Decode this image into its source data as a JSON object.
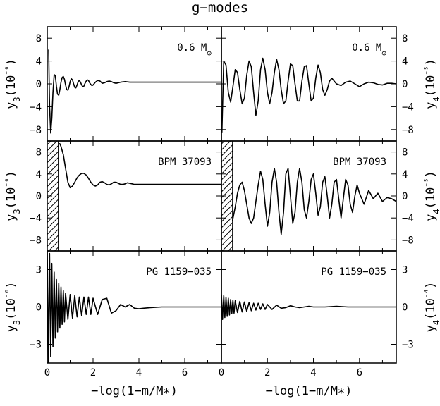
{
  "title": "g−modes",
  "colors": {
    "line": "#000000",
    "background": "#ffffff"
  },
  "chart_data": [
    {
      "type": "line",
      "panel": "top-left",
      "label": "0.6 M⊙",
      "xlabel": "−log(1−m/M∗)",
      "ylabel": "y3(10⁻⁶)",
      "xlim": [
        0,
        7.6
      ],
      "ylim": [
        -10,
        10
      ],
      "xticks": [
        0,
        2,
        4,
        6
      ],
      "yticks": [
        -8,
        -4,
        0,
        4,
        8
      ],
      "xtick_labels": [],
      "ytick_labels": [
        "8",
        "4",
        "0",
        "−4",
        "−8"
      ],
      "hatched_region": null,
      "series": [
        {
          "x": [
            0.06,
            0.1,
            0.15,
            0.2,
            0.25,
            0.3,
            0.35,
            0.4,
            0.45,
            0.5,
            0.55,
            0.6,
            0.65,
            0.7,
            0.75,
            0.8,
            0.85,
            0.9,
            0.95,
            1.0,
            1.05,
            1.1,
            1.15,
            1.2,
            1.25,
            1.3,
            1.35,
            1.4,
            1.45,
            1.5,
            1.55,
            1.6,
            1.65,
            1.7,
            1.75,
            1.8,
            1.85,
            1.9,
            1.95,
            2.0,
            2.1,
            2.2,
            2.3,
            2.4,
            2.5,
            2.6,
            2.7,
            2.8,
            2.9,
            3.0,
            3.2,
            3.4,
            3.6,
            3.8,
            4.0,
            4.4,
            5.0,
            6.0,
            7.6
          ],
          "y": [
            6.0,
            -4.0,
            -8.6,
            -6.0,
            -1.5,
            1.6,
            1.5,
            -0.4,
            -1.8,
            -2.0,
            -1.0,
            0.3,
            1.1,
            1.3,
            0.8,
            -0.2,
            -1.0,
            -1.1,
            -0.5,
            0.4,
            0.9,
            0.7,
            0.0,
            -0.6,
            -0.7,
            -0.2,
            0.4,
            0.6,
            0.3,
            -0.2,
            -0.5,
            -0.4,
            0.1,
            0.5,
            0.7,
            0.6,
            0.2,
            -0.1,
            -0.3,
            -0.2,
            0.3,
            0.6,
            0.5,
            0.1,
            0.2,
            0.4,
            0.5,
            0.4,
            0.2,
            0.1,
            0.3,
            0.4,
            0.3,
            0.3,
            0.3,
            0.3,
            0.3,
            0.3,
            0.3
          ]
        }
      ]
    },
    {
      "type": "line",
      "panel": "top-right",
      "label": "0.6 M⊙",
      "xlabel": "−log(1−m/M∗)",
      "ylabel": "y4(10⁻⁵)",
      "xlim": [
        0,
        7.6
      ],
      "ylim": [
        -10,
        10
      ],
      "xticks": [
        0,
        2,
        4,
        6
      ],
      "yticks": [
        -8,
        -4,
        0,
        4,
        8
      ],
      "xtick_labels": [],
      "ytick_labels": [
        "8",
        "4",
        "0",
        "−4",
        "−8"
      ],
      "hatched_region": null,
      "series": [
        {
          "x": [
            0.02,
            0.1,
            0.2,
            0.3,
            0.4,
            0.5,
            0.6,
            0.7,
            0.8,
            0.9,
            1.0,
            1.1,
            1.2,
            1.3,
            1.4,
            1.5,
            1.6,
            1.7,
            1.8,
            1.9,
            2.0,
            2.1,
            2.2,
            2.3,
            2.4,
            2.5,
            2.6,
            2.7,
            2.8,
            2.9,
            3.0,
            3.1,
            3.2,
            3.3,
            3.4,
            3.5,
            3.6,
            3.7,
            3.8,
            3.9,
            4.0,
            4.1,
            4.2,
            4.3,
            4.4,
            4.5,
            4.6,
            4.7,
            4.8,
            4.9,
            5.0,
            5.2,
            5.4,
            5.6,
            5.8,
            6.0,
            6.2,
            6.4,
            6.6,
            6.8,
            7.0,
            7.2,
            7.4,
            7.6
          ],
          "y": [
            -8.5,
            4.0,
            3.3,
            -1.5,
            -3.2,
            -0.5,
            2.5,
            2.0,
            -1.0,
            -3.5,
            -2.5,
            1.5,
            4.0,
            3.0,
            -1.5,
            -5.5,
            -3.0,
            2.5,
            4.5,
            2.5,
            -1.5,
            -3.5,
            -1.5,
            2.0,
            4.3,
            2.5,
            -1.0,
            -3.5,
            -3.0,
            0.5,
            3.5,
            3.2,
            0.0,
            -3.0,
            -3.0,
            0.5,
            3.0,
            3.2,
            0.0,
            -3.0,
            -2.5,
            1.0,
            3.3,
            2.0,
            -1.0,
            -2.0,
            -1.0,
            0.5,
            1.0,
            0.5,
            0.0,
            -0.3,
            0.3,
            0.5,
            0.0,
            -0.5,
            0.0,
            0.3,
            0.2,
            -0.1,
            -0.2,
            0.1,
            0.1,
            0.0
          ]
        }
      ]
    },
    {
      "type": "line",
      "panel": "middle-left",
      "label": "BPM 37093",
      "xlabel": "−log(1−m/M∗)",
      "ylabel": "y3(10⁻⁶)",
      "xlim": [
        0,
        7.6
      ],
      "ylim": [
        -10,
        10
      ],
      "xticks": [
        0,
        2,
        4,
        6
      ],
      "yticks": [
        -8,
        -4,
        0,
        4,
        8
      ],
      "xtick_labels": [],
      "ytick_labels": [
        "8",
        "4",
        "0",
        "−4",
        "−8"
      ],
      "hatched_region": [
        0,
        0.48
      ],
      "series": [
        {
          "x": [
            0.48,
            0.55,
            0.6,
            0.7,
            0.8,
            0.9,
            1.0,
            1.1,
            1.2,
            1.3,
            1.4,
            1.5,
            1.6,
            1.7,
            1.8,
            1.9,
            2.0,
            2.1,
            2.2,
            2.3,
            2.4,
            2.5,
            2.6,
            2.7,
            2.8,
            2.9,
            3.0,
            3.1,
            3.2,
            3.3,
            3.4,
            3.5,
            3.6,
            3.7,
            3.8,
            3.9,
            4.0,
            4.2,
            4.4,
            4.6,
            4.8,
            5.0,
            6.0,
            7.6
          ],
          "y": [
            9.5,
            9.5,
            9.0,
            7.5,
            5.0,
            2.5,
            1.5,
            1.8,
            2.5,
            3.3,
            3.8,
            4.1,
            4.1,
            3.8,
            3.2,
            2.5,
            2.0,
            1.8,
            2.0,
            2.5,
            2.6,
            2.4,
            2.1,
            2.0,
            2.2,
            2.5,
            2.5,
            2.3,
            2.1,
            2.1,
            2.2,
            2.4,
            2.3,
            2.2,
            2.1,
            2.1,
            2.1,
            2.1,
            2.1,
            2.1,
            2.1,
            2.1,
            2.1,
            2.1
          ]
        }
      ]
    },
    {
      "type": "line",
      "panel": "middle-right",
      "label": "BPM 37093",
      "xlabel": "−log(1−m/M∗)",
      "ylabel": "y4(10⁻⁵)",
      "xlim": [
        0,
        7.6
      ],
      "ylim": [
        -10,
        10
      ],
      "xticks": [
        0,
        2,
        4,
        6
      ],
      "yticks": [
        -8,
        -4,
        0,
        4,
        8
      ],
      "xtick_labels": [],
      "ytick_labels": [
        "8",
        "4",
        "0",
        "−4",
        "−8"
      ],
      "hatched_region": [
        0,
        0.48
      ],
      "series": [
        {
          "x": [
            0.48,
            0.6,
            0.7,
            0.8,
            0.9,
            1.0,
            1.1,
            1.2,
            1.3,
            1.4,
            1.5,
            1.6,
            1.7,
            1.8,
            1.9,
            2.0,
            2.1,
            2.2,
            2.3,
            2.4,
            2.5,
            2.6,
            2.7,
            2.8,
            2.9,
            3.0,
            3.1,
            3.2,
            3.3,
            3.4,
            3.5,
            3.6,
            3.7,
            3.8,
            3.9,
            4.0,
            4.1,
            4.2,
            4.3,
            4.4,
            4.5,
            4.6,
            4.7,
            4.8,
            4.9,
            5.0,
            5.1,
            5.2,
            5.3,
            5.4,
            5.5,
            5.6,
            5.7,
            5.8,
            5.9,
            6.0,
            6.2,
            6.4,
            6.6,
            6.8,
            7.0,
            7.2,
            7.4,
            7.6
          ],
          "y": [
            -4.5,
            -2.0,
            0.5,
            2.0,
            2.5,
            1.0,
            -1.5,
            -4.0,
            -5.0,
            -4.0,
            -1.0,
            2.0,
            4.5,
            3.0,
            -1.5,
            -5.5,
            -3.0,
            2.5,
            5.0,
            2.5,
            -3.0,
            -7.0,
            -3.0,
            4.0,
            5.0,
            0.0,
            -5.0,
            -3.0,
            2.5,
            5.0,
            2.5,
            -2.5,
            -4.0,
            -1.0,
            3.0,
            4.0,
            0.5,
            -3.5,
            -2.0,
            2.5,
            3.5,
            0.0,
            -4.0,
            -1.5,
            2.5,
            3.0,
            -0.5,
            -4.0,
            -0.5,
            3.0,
            2.0,
            -1.5,
            -3.0,
            0.0,
            2.0,
            0.5,
            -1.5,
            1.0,
            -0.5,
            0.5,
            -1.0,
            -0.3,
            -0.5,
            -1.0
          ]
        }
      ]
    },
    {
      "type": "line",
      "panel": "bottom-left",
      "label": "PG 1159−035",
      "xlabel": "−log(1−m/M∗)",
      "ylabel": "y3(10⁻⁶)",
      "xlim": [
        0,
        7.6
      ],
      "ylim": [
        -4.5,
        4.5
      ],
      "xticks": [
        0,
        2,
        4,
        6
      ],
      "yticks": [
        -3,
        0,
        3
      ],
      "xtick_labels": [
        "0",
        "2",
        "4",
        "6"
      ],
      "ytick_labels": [
        "3",
        "0",
        "−3"
      ],
      "hatched_region": null,
      "series": [
        {
          "x": [
            0.0,
            0.05,
            0.1,
            0.15,
            0.2,
            0.25,
            0.3,
            0.35,
            0.4,
            0.45,
            0.5,
            0.55,
            0.6,
            0.65,
            0.7,
            0.75,
            0.8,
            0.9,
            1.0,
            1.1,
            1.2,
            1.3,
            1.4,
            1.5,
            1.6,
            1.7,
            1.8,
            1.9,
            2.0,
            2.2,
            2.4,
            2.6,
            2.8,
            3.0,
            3.2,
            3.4,
            3.6,
            3.8,
            4.0,
            4.2,
            4.5,
            5.0,
            5.5,
            6.0,
            6.5,
            7.0,
            7.6
          ],
          "y": [
            4.5,
            -4.5,
            4.3,
            -4.0,
            3.5,
            -3.2,
            2.8,
            -2.5,
            2.2,
            -2.0,
            1.9,
            -1.7,
            1.6,
            -1.4,
            1.3,
            -1.2,
            1.1,
            -1.0,
            1.0,
            -0.9,
            0.9,
            -0.8,
            0.8,
            -0.7,
            0.8,
            -0.6,
            0.8,
            -0.6,
            0.7,
            -0.6,
            0.6,
            0.7,
            -0.5,
            -0.3,
            0.2,
            0.0,
            0.2,
            -0.1,
            -0.15,
            -0.1,
            -0.05,
            0.0,
            0.0,
            0.0,
            0.0,
            0.0,
            0.0
          ]
        }
      ]
    },
    {
      "type": "line",
      "panel": "bottom-right",
      "label": "PG 1159−035",
      "xlabel": "−log(1−m/M∗)",
      "ylabel": "y4(10⁻⁴)",
      "xlim": [
        0,
        7.6
      ],
      "ylim": [
        -4.5,
        4.5
      ],
      "xticks": [
        0,
        2,
        4,
        6
      ],
      "yticks": [
        -3,
        0,
        3
      ],
      "xtick_labels": [
        "0",
        "2",
        "4",
        "6"
      ],
      "ytick_labels": [
        "3",
        "0",
        "−3"
      ],
      "hatched_region": null,
      "series": [
        {
          "x": [
            0.0,
            0.05,
            0.1,
            0.15,
            0.2,
            0.25,
            0.3,
            0.35,
            0.4,
            0.45,
            0.5,
            0.55,
            0.6,
            0.7,
            0.8,
            0.9,
            1.0,
            1.1,
            1.2,
            1.3,
            1.4,
            1.5,
            1.6,
            1.7,
            1.8,
            1.9,
            2.0,
            2.2,
            2.4,
            2.6,
            2.8,
            3.0,
            3.2,
            3.4,
            3.6,
            3.8,
            4.0,
            4.5,
            5.0,
            5.5,
            6.0,
            6.5,
            7.0,
            7.6
          ],
          "y": [
            1.0,
            -1.0,
            0.9,
            -0.85,
            0.8,
            -0.75,
            0.7,
            -0.65,
            0.6,
            -0.55,
            0.55,
            -0.5,
            0.5,
            -0.45,
            0.45,
            -0.4,
            0.4,
            -0.35,
            0.35,
            -0.3,
            0.3,
            -0.25,
            0.3,
            -0.2,
            0.25,
            -0.2,
            0.2,
            -0.2,
            0.15,
            -0.1,
            -0.05,
            0.1,
            0.0,
            -0.05,
            0.0,
            0.05,
            0.0,
            0.0,
            0.05,
            0.0,
            0.0,
            0.0,
            0.0,
            0.0
          ]
        }
      ]
    }
  ]
}
